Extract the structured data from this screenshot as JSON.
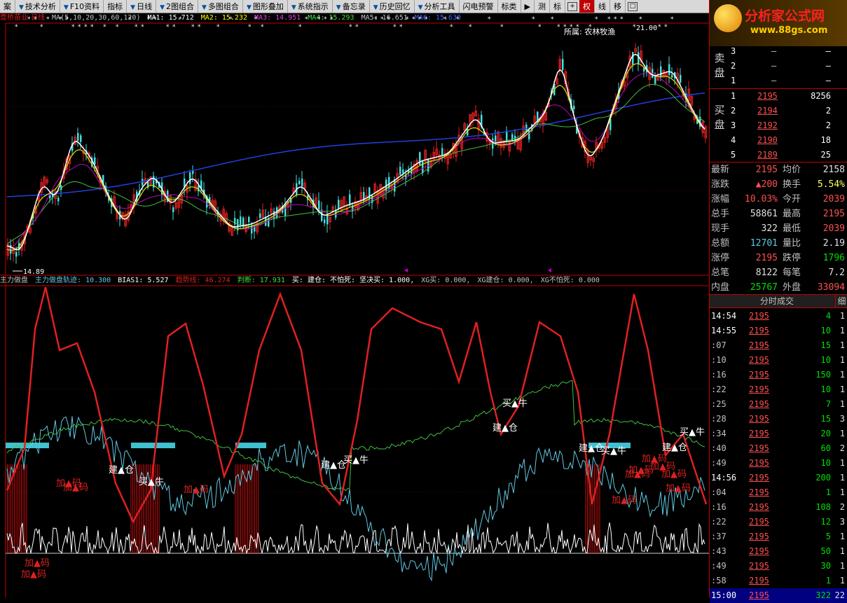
{
  "toolbar": {
    "items": [
      "案",
      "技术分析",
      "F10资料",
      "指标",
      "日线",
      "2图组合",
      "多图组合",
      "图形叠加",
      "系统指示",
      "备忘录",
      "历史回忆",
      "分析工具",
      "闪电预警",
      "标类"
    ],
    "tabs": [
      "测",
      "标",
      "权",
      "线",
      "移"
    ],
    "active_tab": "权"
  },
  "stock": {
    "name": "壹桥苗业",
    "period": "日线",
    "sector": "所属: 农林牧渔"
  },
  "ma_bar": {
    "ma": "MA(5,10,20,30,60,120)",
    "ma1": "MA1: 15.712",
    "ma2": "MA2: 15.232",
    "ma3": "MA3: 14.951",
    "ma4": "MA4: 15.293",
    "ma5": "MA5: 16.651",
    "ma6": "MA6: 15.630"
  },
  "price_labels": {
    "high": "21.00",
    "low": "14.89"
  },
  "indicator_bar": {
    "name": "主力做盘",
    "track": "主力做盘轨迹: 10.300",
    "bias": "BIAS1: 5.527",
    "trend": "趋势线: 46.274",
    "judge": "判断: 17.931",
    "buy": "买: 建仓: 不怕死: 坚决买: 1.000,",
    "xg1": "XG买: 0.000,",
    "xg2": "XG建仓: 0.000,",
    "xg3": "XG不怕死: 0.000"
  },
  "signals": {
    "jiancang": "建▲仓",
    "maiiniu": "买▲牛",
    "jiama": "加▲码"
  },
  "colors": {
    "red": "#e02020",
    "cyan": "#60c8e0",
    "green": "#40c040",
    "white": "#ffffff",
    "yellow": "#ffff00",
    "blue": "#2040e0",
    "magenta": "#c000c0"
  },
  "logo": {
    "title": "分析家公式网",
    "url": "www.88gs.com"
  },
  "orderbook": {
    "sell_label": "卖盘",
    "buy_label": "买盘",
    "sell": [
      {
        "n": "3",
        "p": "–",
        "v": "–"
      },
      {
        "n": "2",
        "p": "–",
        "v": "–"
      },
      {
        "n": "1",
        "p": "–",
        "v": "–"
      }
    ],
    "buy": [
      {
        "n": "1",
        "p": "2195",
        "v": "8256"
      },
      {
        "n": "2",
        "p": "2194",
        "v": "2"
      },
      {
        "n": "3",
        "p": "2192",
        "v": "2"
      },
      {
        "n": "4",
        "p": "2190",
        "v": "18"
      },
      {
        "n": "5",
        "p": "2189",
        "v": "25"
      }
    ]
  },
  "stats": [
    {
      "k": "最新",
      "v": "2195",
      "k2": "均价",
      "v2": "2158"
    },
    {
      "k": "涨跌",
      "v": "▲200",
      "k2": "换手",
      "v2": "5.54%"
    },
    {
      "k": "涨幅",
      "v": "10.03%",
      "k2": "今开",
      "v2": "2039"
    },
    {
      "k": "总手",
      "v": "58861",
      "k2": "最高",
      "v2": "2195"
    },
    {
      "k": "现手",
      "v": "322",
      "k2": "最低",
      "v2": "2039"
    },
    {
      "k": "总额",
      "v": "12701",
      "k2": "量比",
      "v2": "2.19"
    },
    {
      "k": "涨停",
      "v": "2195",
      "k2": "跌停",
      "v2": "1796"
    },
    {
      "k": "总笔",
      "v": "8122",
      "k2": "每笔",
      "v2": "7.2"
    },
    {
      "k": "内盘",
      "v": "25767",
      "k2": "外盘",
      "v2": "33094"
    }
  ],
  "ticks_header": "分时成交",
  "ticks_header_btn": "细",
  "ticks": [
    {
      "t": "14:54",
      "p": "2195",
      "q": "4",
      "c": "1"
    },
    {
      "t": "14:55",
      "p": "2195",
      "q": "10",
      "c": "1"
    },
    {
      "t": ":07",
      "p": "2195",
      "q": "15",
      "c": "1"
    },
    {
      "t": ":10",
      "p": "2195",
      "q": "10",
      "c": "1"
    },
    {
      "t": ":16",
      "p": "2195",
      "q": "150",
      "c": "1"
    },
    {
      "t": ":22",
      "p": "2195",
      "q": "10",
      "c": "1"
    },
    {
      "t": ":25",
      "p": "2195",
      "q": "7",
      "c": "1"
    },
    {
      "t": ":28",
      "p": "2195",
      "q": "15",
      "c": "3"
    },
    {
      "t": ":34",
      "p": "2195",
      "q": "20",
      "c": "1"
    },
    {
      "t": ":40",
      "p": "2195",
      "q": "60",
      "c": "2"
    },
    {
      "t": ":49",
      "p": "2195",
      "q": "10",
      "c": "1"
    },
    {
      "t": "14:56",
      "p": "2195",
      "q": "200",
      "c": "1"
    },
    {
      "t": ":04",
      "p": "2195",
      "q": "1",
      "c": "1"
    },
    {
      "t": ":16",
      "p": "2195",
      "q": "108",
      "c": "2"
    },
    {
      "t": ":22",
      "p": "2195",
      "q": "12",
      "c": "3"
    },
    {
      "t": ":37",
      "p": "2195",
      "q": "5",
      "c": "1"
    },
    {
      "t": ":43",
      "p": "2195",
      "q": "50",
      "c": "1"
    },
    {
      "t": ":49",
      "p": "2195",
      "q": "30",
      "c": "1"
    },
    {
      "t": ":58",
      "p": "2195",
      "q": "1",
      "c": "1"
    },
    {
      "t": "15:00",
      "p": "2195",
      "q": "322",
      "c": "22"
    }
  ]
}
